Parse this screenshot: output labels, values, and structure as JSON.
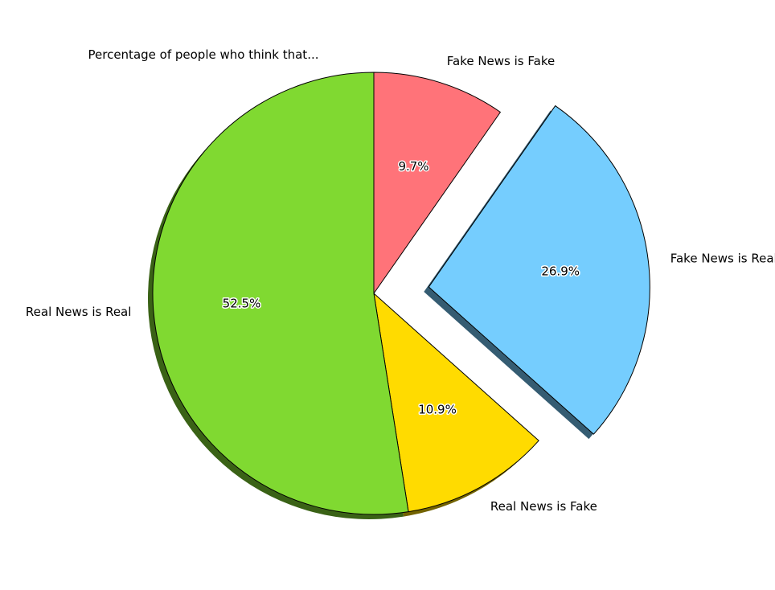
{
  "chart_data": {
    "type": "pie",
    "title": "Percentage of people who think that...",
    "categories": [
      "Fake News is Fake",
      "Fake News is Real",
      "Real News is Fake",
      "Real News is Real"
    ],
    "values": [
      9.7,
      26.9,
      10.9,
      52.5
    ],
    "percent_labels": [
      "9.7%",
      "26.9%",
      "10.9%",
      "52.5%"
    ],
    "colors": [
      "#ff7379",
      "#75cdfe",
      "#ffdb00",
      "#80d931"
    ],
    "explode": [
      0,
      0.25,
      0,
      0
    ],
    "shadow": true,
    "start_angle_deg": 90,
    "direction": "clockwise"
  }
}
